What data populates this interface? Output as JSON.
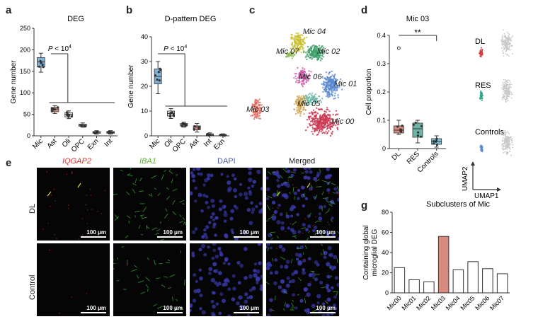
{
  "panel_letters": {
    "a": "a",
    "b": "b",
    "c": "c",
    "d": "d",
    "e": "e",
    "g": "g"
  },
  "colors": {
    "mic": "#7fb1d6",
    "ast": "#d68b7e",
    "oli": "#d8d8d8",
    "opc": "#c4c4c4",
    "exn": "#e0e0e0",
    "int": "#d0d0d0",
    "dl": "#d68b7e",
    "res": "#6fb5a6",
    "controls": "#7ec3d6",
    "mic03_bar": "#d68b7e",
    "umap_red": "#d63a3a",
    "umap_green": "#2aa082",
    "umap_blue": "#5a8ad0"
  },
  "chart_data": [
    {
      "id": "a",
      "type": "box",
      "title": "DEG",
      "ylabel": "Gene number",
      "xlabel": "",
      "categories": [
        "Mic",
        "Ast",
        "Oli",
        "OPC",
        "Exn",
        "Int"
      ],
      "medians": [
        172,
        62,
        50,
        25,
        8,
        8
      ],
      "q1": [
        160,
        56,
        44,
        22,
        6,
        6
      ],
      "q3": [
        182,
        66,
        54,
        27,
        10,
        10
      ],
      "whisker_low": [
        148,
        52,
        40,
        20,
        4,
        4
      ],
      "whisker_high": [
        192,
        70,
        58,
        30,
        12,
        12
      ],
      "ylim": [
        0,
        250
      ],
      "yticks": [
        0,
        50,
        100,
        150,
        200,
        250
      ],
      "annotation": {
        "text_prefix": "P",
        "text_suffix": " < 10",
        "exponent": "4"
      },
      "grid": false
    },
    {
      "id": "b",
      "type": "box",
      "title": "D-pattern DEG",
      "ylabel": "Gene number",
      "xlabel": "",
      "categories": [
        "Mic",
        "Oli",
        "OPC",
        "Ast",
        "Int",
        "Exn"
      ],
      "medians": [
        24,
        9,
        4.5,
        3.5,
        0.5,
        0.3
      ],
      "q1": [
        21,
        8,
        4,
        2.5,
        0.2,
        0.1
      ],
      "q3": [
        27,
        10,
        5,
        4,
        0.8,
        0.5
      ],
      "whisker_low": [
        17,
        7,
        3.5,
        1.5,
        0,
        0
      ],
      "whisker_high": [
        30,
        11,
        5.5,
        5,
        1.2,
        0.8
      ],
      "ylim": [
        0,
        40
      ],
      "yticks": [
        0,
        10,
        20,
        30,
        40
      ],
      "annotation": {
        "text_prefix": "P",
        "text_suffix": " < 10",
        "exponent": "4"
      },
      "grid": false
    },
    {
      "id": "c",
      "type": "scatter",
      "title": "",
      "cluster_labels": [
        "Mic 04",
        "Mic 07",
        "Mic 02",
        "Mic 06",
        "Mic 01",
        "Mic 05",
        "Mic 00",
        "Mic 03"
      ]
    },
    {
      "id": "d",
      "type": "box",
      "title": "Mic 03",
      "ylabel": "Cell proportion",
      "xlabel": "",
      "categories": [
        "DL",
        "RES",
        "Controls"
      ],
      "medians": [
        0.065,
        0.07,
        0.025
      ],
      "q1": [
        0.055,
        0.04,
        0.015
      ],
      "q3": [
        0.08,
        0.09,
        0.035
      ],
      "whisker_low": [
        0.05,
        0.02,
        0.005
      ],
      "whisker_high": [
        0.1,
        0.1,
        0.045
      ],
      "outliers": [
        [
          0.355
        ],
        [],
        []
      ],
      "ylim": [
        0,
        0.4
      ],
      "yticks": [
        0,
        0.1,
        0.2,
        0.3,
        0.4
      ],
      "annotation": "**",
      "umap_labels": [
        "DL",
        "RES",
        "Controls"
      ],
      "umap_axis_labels": {
        "x": "UMAP1",
        "y": "UMAP2"
      }
    },
    {
      "id": "e",
      "type": "image_grid",
      "column_titles": [
        "IQGAP2",
        "IBA1",
        "DAPI",
        "Merged"
      ],
      "row_labels": [
        "DL",
        "Control"
      ],
      "scalebar": "100 μm"
    },
    {
      "id": "g",
      "type": "bar",
      "title": "Subclusters of Mic",
      "ylabel": "Containing global microglial DEG",
      "xlabel": "",
      "categories": [
        "Mic00",
        "Mic01",
        "Mic02",
        "Mic03",
        "Mic04",
        "Mic05",
        "Mic06",
        "Mic07"
      ],
      "values": [
        25,
        13,
        11,
        56,
        23,
        31,
        24,
        19
      ],
      "ylim": [
        0,
        80
      ],
      "yticks": [
        0,
        20,
        40,
        60,
        80
      ],
      "highlight_index": 3,
      "grid": false
    }
  ]
}
